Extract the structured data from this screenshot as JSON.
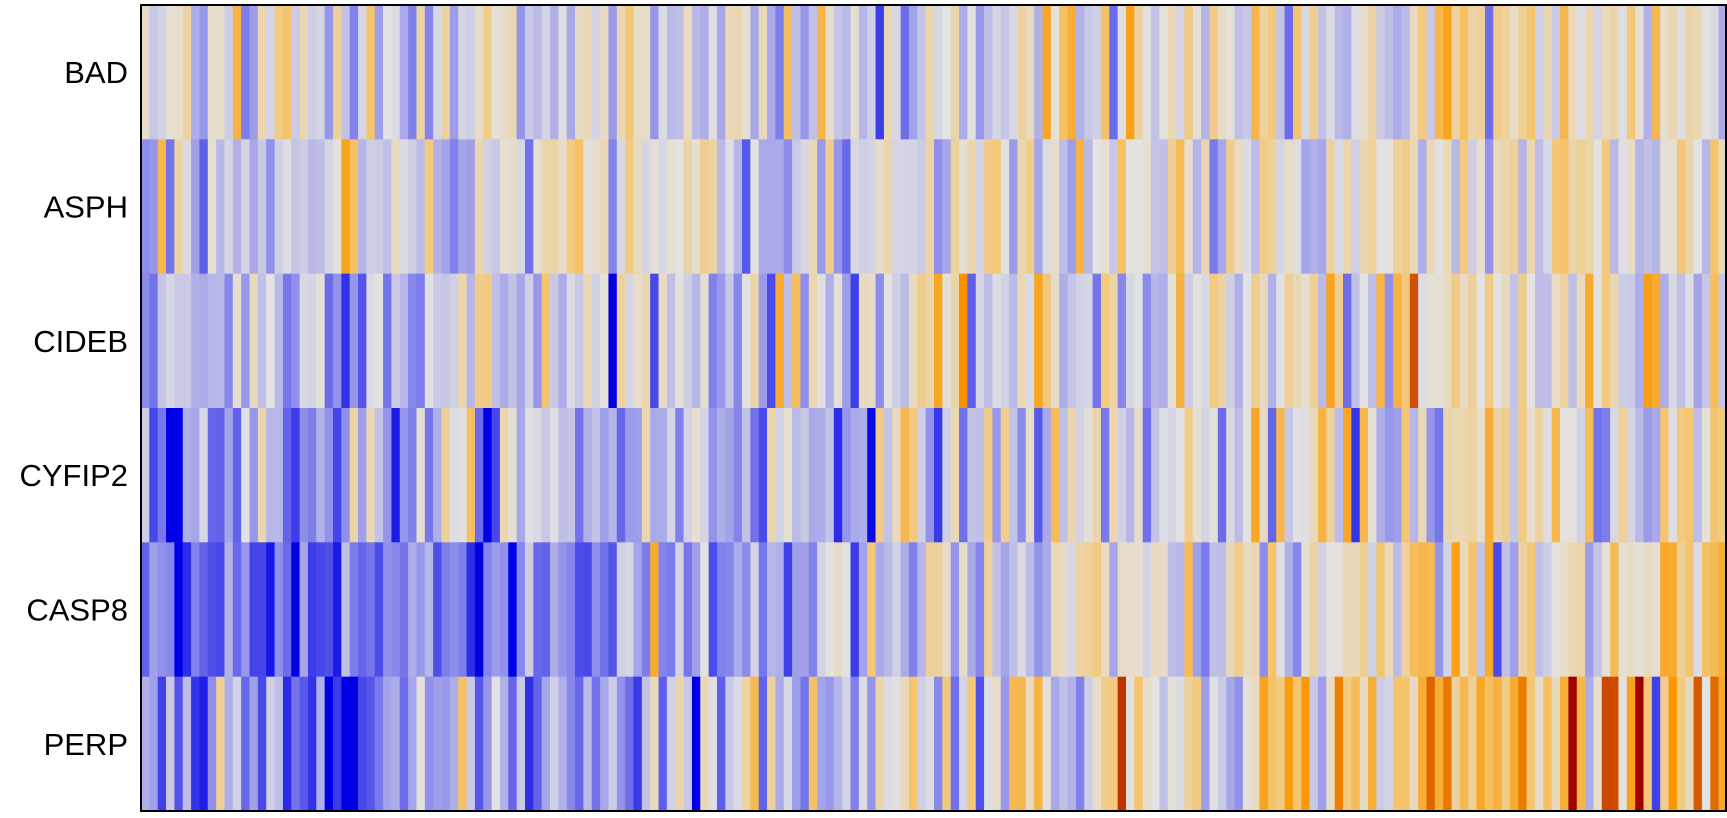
{
  "chart_data": {
    "type": "heatmap",
    "title": "",
    "xlabel": "",
    "ylabel": "",
    "rows": [
      "BAD",
      "ASPH",
      "CIDEB",
      "CYFIP2",
      "CASP8",
      "PERP"
    ],
    "n_columns": 190,
    "value_range": [
      -3,
      3
    ],
    "color_scale": {
      "low": "#0000e6",
      "mid_low": "#8c8cec",
      "mid": "#e3e3e3",
      "mid_high": "#f5c46a",
      "high": "#fa9600",
      "extreme_high": "#a00000"
    },
    "grid": false,
    "legend": "none",
    "row_trends": [
      {
        "row": "BAD",
        "start": -0.2,
        "end": 0.4,
        "noise": 1.1
      },
      {
        "row": "ASPH",
        "start": -0.3,
        "end": 0.2,
        "noise": 1.1
      },
      {
        "row": "CIDEB",
        "start": -0.6,
        "end": 0.3,
        "noise": 1.2
      },
      {
        "row": "CYFIP2",
        "start": -1.1,
        "end": 0.2,
        "noise": 1.2
      },
      {
        "row": "CASP8",
        "start": -2.0,
        "end": 0.6,
        "noise": 1.2
      },
      {
        "row": "PERP",
        "start": -1.8,
        "end": 1.8,
        "noise": 1.3
      }
    ]
  }
}
